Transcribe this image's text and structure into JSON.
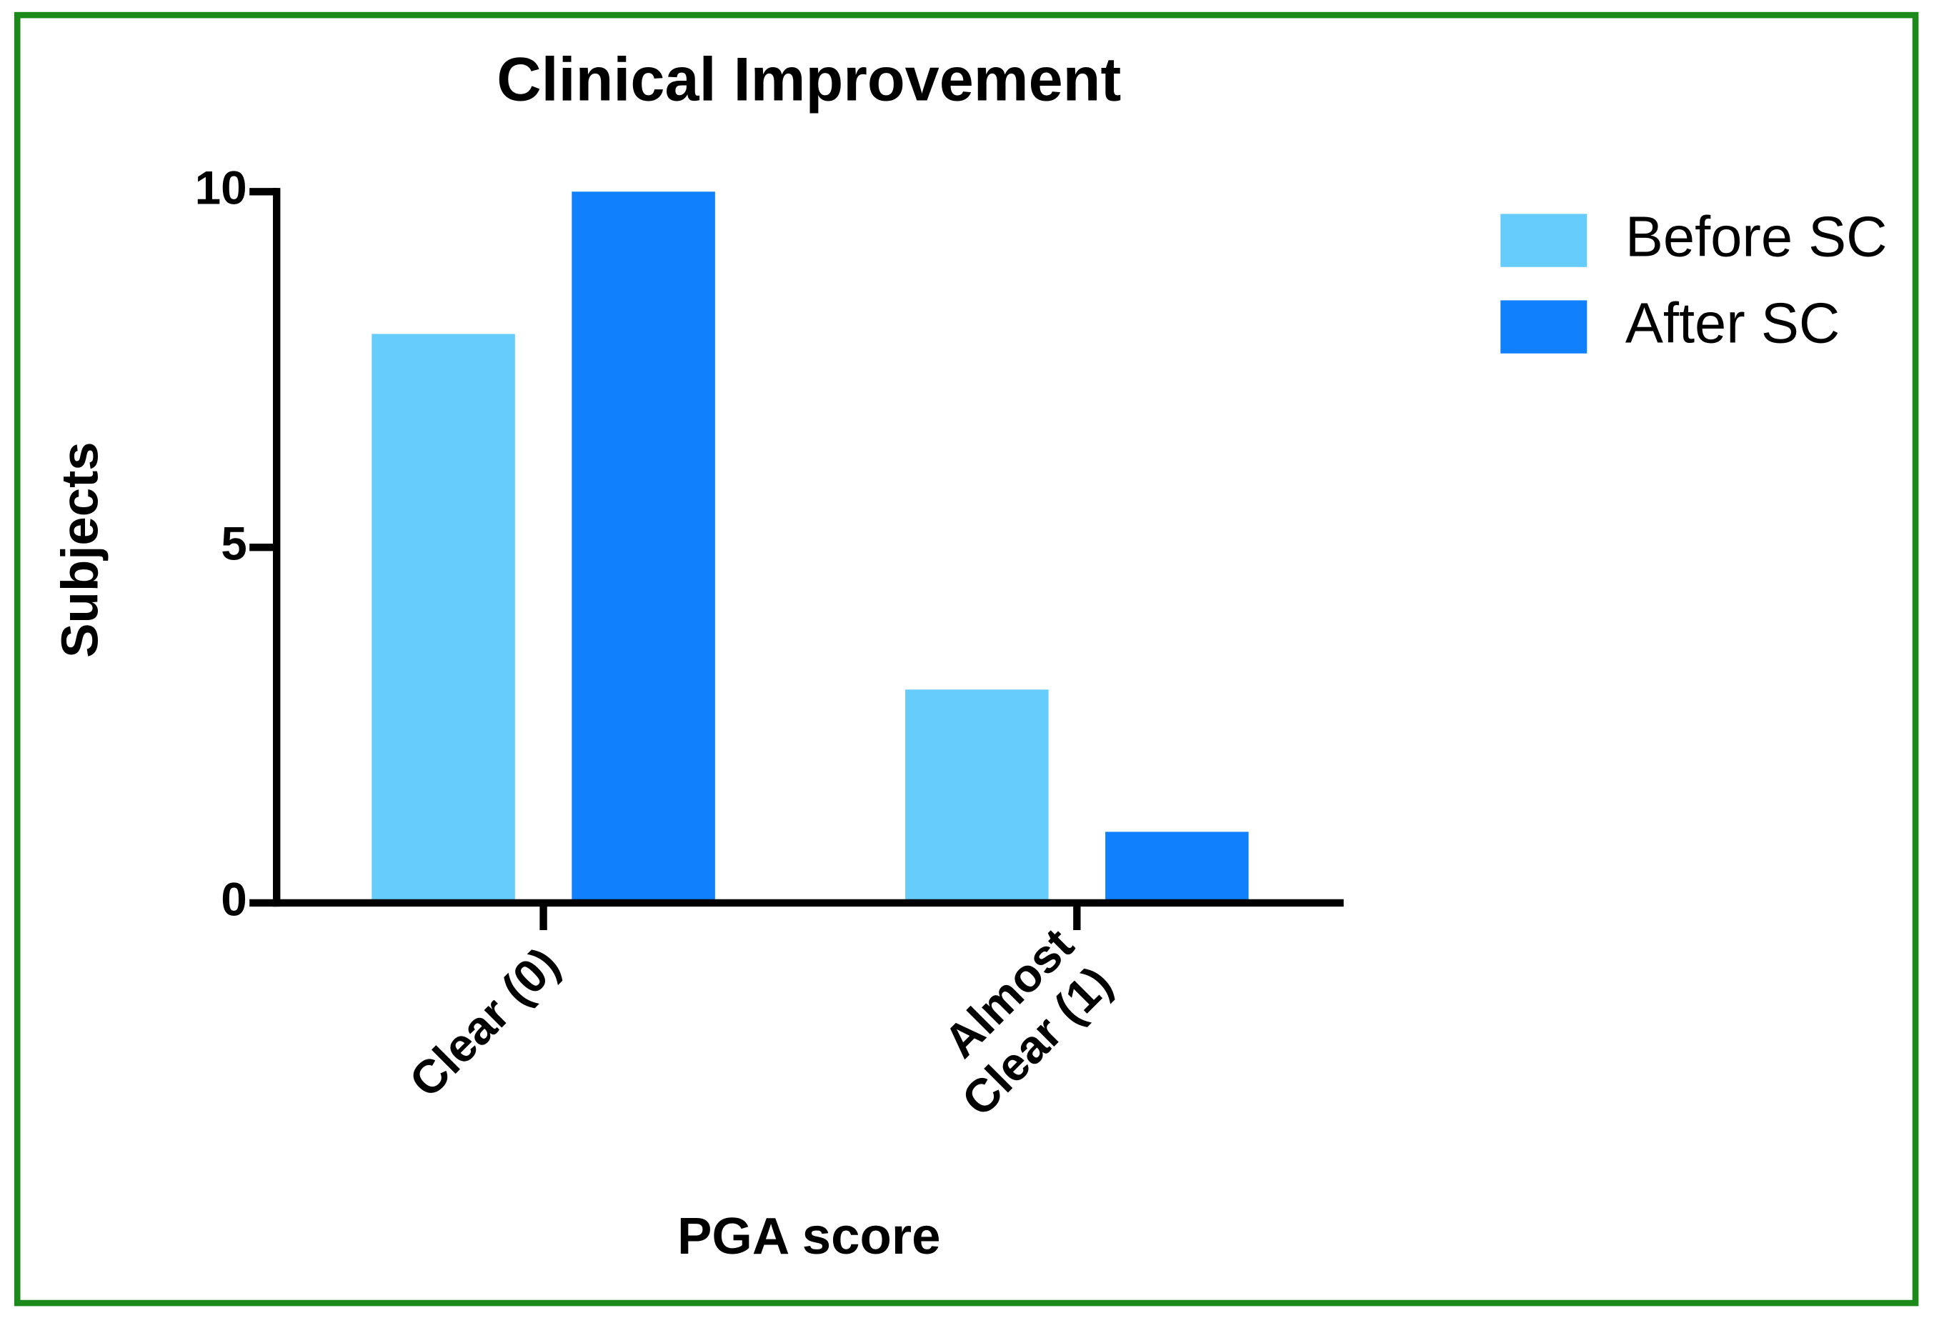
{
  "chart_data": {
    "type": "bar",
    "title": "Clinical Improvement",
    "x_label": "PGA score",
    "y_label": "Subjects",
    "categories": [
      "Clear (0)",
      "Almost\nClear (1)"
    ],
    "series": [
      {
        "name": "Before SC",
        "color": "#66ccfc",
        "values": [
          8,
          3
        ]
      },
      {
        "name": "After SC",
        "color": "#1080fc",
        "values": [
          10,
          1
        ]
      }
    ],
    "ylim": [
      0,
      10
    ],
    "yticks": [
      0,
      5,
      10
    ],
    "grid": false,
    "legend": "right"
  }
}
